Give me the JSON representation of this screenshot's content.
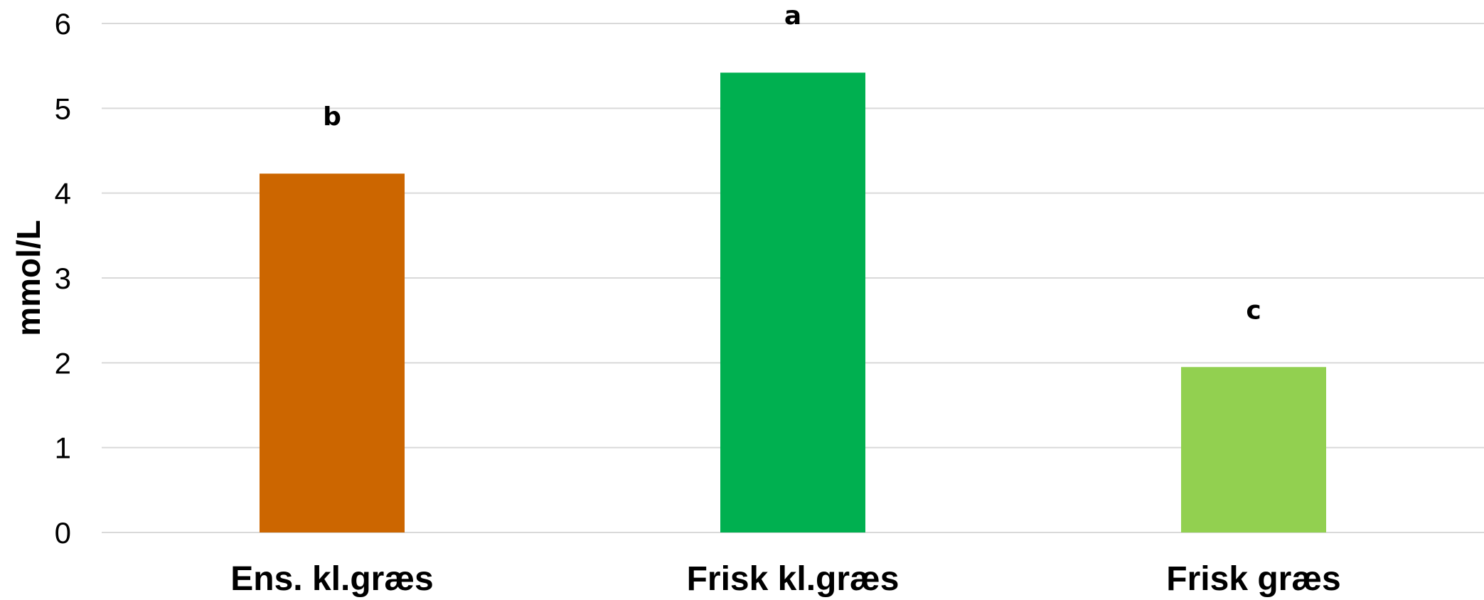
{
  "chart_data": {
    "type": "bar",
    "title": "",
    "xlabel": "",
    "ylabel": "mmol/L",
    "ylim": [
      0,
      6
    ],
    "yticks": [
      0,
      1,
      2,
      3,
      4,
      5,
      6
    ],
    "grid": true,
    "legend": "none",
    "categories": [
      "Ens. kl.græs",
      "Frisk kl.græs",
      "Frisk græs"
    ],
    "values": [
      4.23,
      5.42,
      1.95
    ],
    "significance_labels": [
      "b",
      "a",
      "c"
    ],
    "colors": [
      "#CC6600",
      "#00B050",
      "#92D050"
    ]
  }
}
